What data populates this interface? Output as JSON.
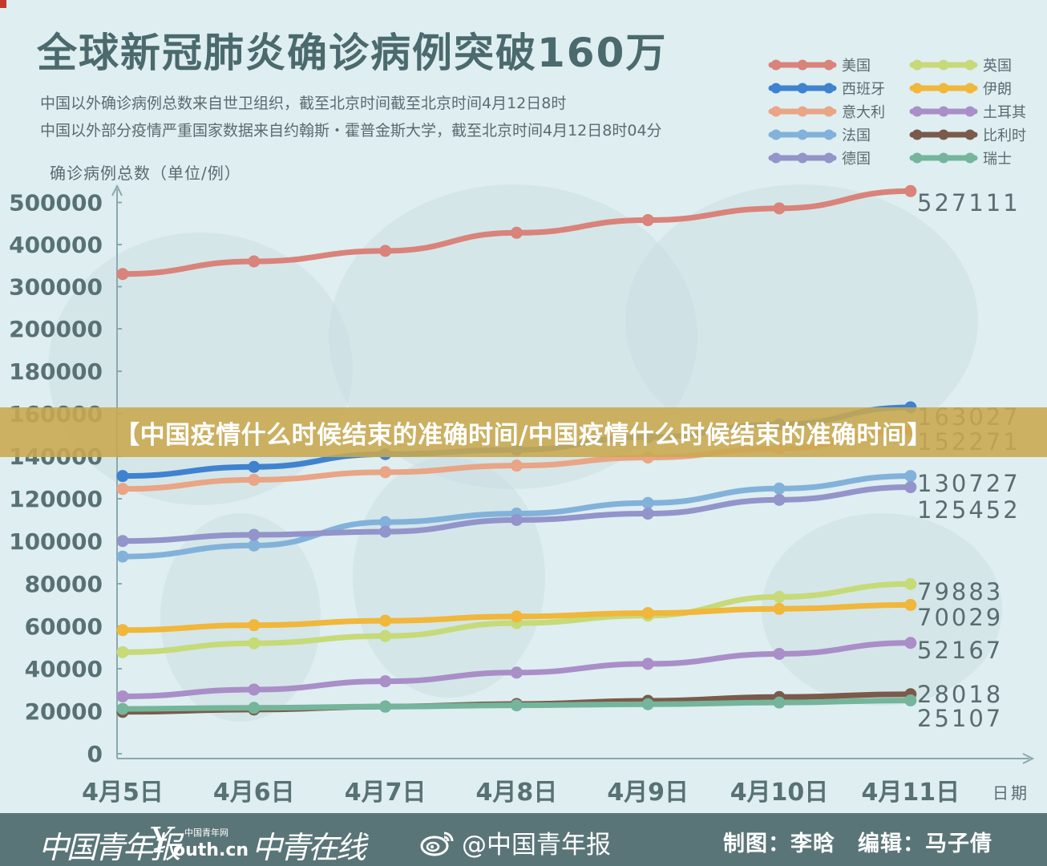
{
  "header": {
    "title": "全球新冠肺炎确诊病例突破160万",
    "subtitle_1": "中国以外确诊病例总数来自世卫组织，截至北京时间截至北京时间4月12日8时",
    "subtitle_2": "中国以外部分疫情严重国家数据来自约翰斯・霍普金斯大学，截至北京时间4月12日8时04分",
    "unit_label": "确诊病例总数（单位/例）"
  },
  "banner": {
    "text": "【中国疫情什么时候结束的准确时间/中国疫情什么时候结束的准确时间】"
  },
  "footer": {
    "logo_1": "中国青年报",
    "logo_2_top": "中国青年网",
    "logo_2_bottom": "outh.cn",
    "logo_2_mark": "Y",
    "logo_3": "中青在线",
    "weibo_handle": "@中国青年报",
    "credits": "制图：李晗　编辑：马子倩",
    "bg_color": "#5a7578"
  },
  "chart_data": {
    "type": "line",
    "title": "全球新冠肺炎确诊病例突破160万",
    "xlabel": "日期",
    "ylabel": "确诊病例总数（单位/例）",
    "categories": [
      "4月5日",
      "4月6日",
      "4月7日",
      "4月8日",
      "4月9日",
      "4月10日",
      "4月11日"
    ],
    "y_ticks": [
      0,
      20000,
      40000,
      60000,
      80000,
      100000,
      120000,
      140000,
      160000,
      180000,
      200000,
      300000,
      400000,
      500000
    ],
    "y_scale": "piecewise: linear 0–200000 then compressed 200000–500000",
    "grid": false,
    "legend_position": "top-right",
    "series": [
      {
        "name": "美国",
        "color": "#d9837a",
        "values": [
          330000,
          360000,
          385000,
          428000,
          458000,
          486000,
          527111
        ],
        "end_label": "527111"
      },
      {
        "name": "西班牙",
        "color": "#3f82d0",
        "values": [
          130700,
          135000,
          141000,
          143000,
          149000,
          155000,
          163027
        ],
        "end_label": "163027"
      },
      {
        "name": "意大利",
        "color": "#e9a585",
        "values": [
          124600,
          128900,
          132500,
          135600,
          139400,
          143600,
          152271
        ],
        "end_label": "152271"
      },
      {
        "name": "法国",
        "color": "#82b2d9",
        "values": [
          92800,
          98000,
          109000,
          113000,
          118000,
          124800,
          130727
        ],
        "end_label": "130727"
      },
      {
        "name": "德国",
        "color": "#9294ca",
        "values": [
          100100,
          103000,
          104500,
          110000,
          113000,
          119500,
          125452
        ],
        "end_label": "125452"
      },
      {
        "name": "英国",
        "color": "#c6da78",
        "values": [
          47800,
          52000,
          55400,
          61500,
          65000,
          73800,
          79883
        ],
        "end_label": "79883"
      },
      {
        "name": "伊朗",
        "color": "#f0b73a",
        "values": [
          58200,
          60500,
          62600,
          64600,
          66200,
          68200,
          70029
        ],
        "end_label": "70029"
      },
      {
        "name": "土耳其",
        "color": "#a98ec8",
        "values": [
          27000,
          30200,
          34100,
          38200,
          42300,
          47000,
          52167
        ],
        "end_label": "52167"
      },
      {
        "name": "比利时",
        "color": "#7a5a4a",
        "values": [
          19700,
          20800,
          22200,
          23400,
          24900,
          26700,
          28018
        ],
        "end_label": "28018"
      },
      {
        "name": "瑞士",
        "color": "#74b59b",
        "values": [
          21100,
          21600,
          22200,
          22800,
          23300,
          24100,
          25107
        ],
        "end_label": "25107"
      }
    ]
  }
}
